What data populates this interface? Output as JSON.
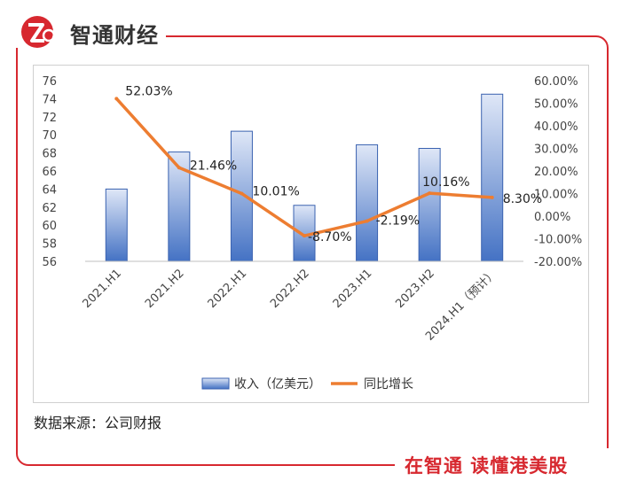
{
  "brand": {
    "name": "智通财经",
    "slogan": "在智通 读懂港美股"
  },
  "source": "数据来源：公司财报",
  "colors": {
    "accent": "#d7282f",
    "bar": "#4472c4",
    "line": "#ed7d31"
  },
  "chart_data": {
    "type": "bar",
    "categories": [
      "2021.H1",
      "2021.H2",
      "2022.H1",
      "2022.H2",
      "2023.H1",
      "2023.H2",
      "2024.H1（预计）"
    ],
    "series": [
      {
        "name": "收入（亿美元）",
        "type": "bar",
        "axis": "left",
        "values": [
          64.0,
          68.1,
          70.4,
          62.2,
          68.9,
          68.5,
          74.5
        ]
      },
      {
        "name": "同比增长",
        "type": "line",
        "axis": "right",
        "values": [
          52.03,
          21.46,
          10.01,
          -8.7,
          -2.19,
          10.16,
          8.3
        ],
        "labels": [
          "52.03%",
          "21.46%",
          "10.01%",
          "-8.70%",
          "-2.19%",
          "10.16%",
          "8.30%"
        ]
      }
    ],
    "y_left": {
      "min": 56,
      "max": 76,
      "step": 2,
      "ticks": [
        "56",
        "58",
        "60",
        "62",
        "64",
        "66",
        "68",
        "70",
        "72",
        "74",
        "76"
      ]
    },
    "y_right": {
      "min": -20,
      "max": 60,
      "step": 10,
      "ticks": [
        "-20.00%",
        "-10.00%",
        "0.00%",
        "10.00%",
        "20.00%",
        "30.00%",
        "40.00%",
        "50.00%",
        "60.00%"
      ]
    },
    "grid": false,
    "legend": "bottom"
  }
}
